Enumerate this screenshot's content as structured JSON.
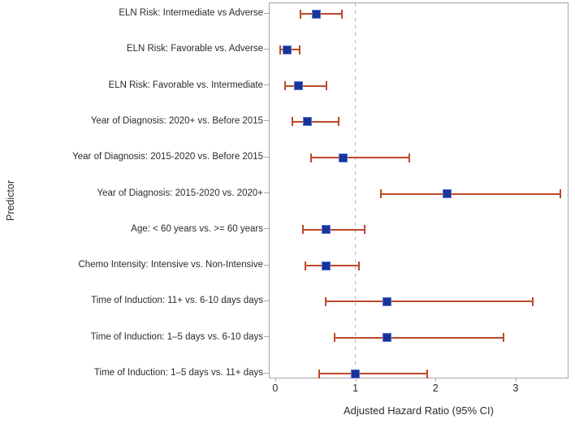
{
  "chart_data": {
    "type": "forest",
    "title": "",
    "xlabel": "Adjusted Hazard Ratio (95% CI)",
    "ylabel": "Predictor",
    "xlim": [
      -0.07,
      3.65
    ],
    "xticks": [
      "0",
      "1",
      "2",
      "3"
    ],
    "reference_line": 1,
    "grid": false,
    "legend": "none",
    "rows": [
      {
        "label": "ELN Risk: Intermediate vs Adverse",
        "hr": 0.51,
        "lo": 0.32,
        "hi": 0.83
      },
      {
        "label": "ELN Risk: Favorable vs. Adverse",
        "hr": 0.15,
        "lo": 0.06,
        "hi": 0.31
      },
      {
        "label": "ELN Risk: Favorable vs. Intermediate",
        "hr": 0.29,
        "lo": 0.12,
        "hi": 0.64
      },
      {
        "label": "Year of Diagnosis: 2020+ vs. Before 2015",
        "hr": 0.4,
        "lo": 0.21,
        "hi": 0.79
      },
      {
        "label": "Year of Diagnosis: 2015-2020 vs. Before 2015",
        "hr": 0.85,
        "lo": 0.45,
        "hi": 1.67
      },
      {
        "label": "Year of Diagnosis: 2015-2020 vs. 2020+",
        "hr": 2.14,
        "lo": 1.32,
        "hi": 3.56
      },
      {
        "label": "Age: < 60 years vs. >= 60 years",
        "hr": 0.63,
        "lo": 0.35,
        "hi": 1.12
      },
      {
        "label": "Chemo Intensity: Intensive vs. Non-Intensive",
        "hr": 0.63,
        "lo": 0.38,
        "hi": 1.05
      },
      {
        "label": "Time of Induction:  11+ vs. 6-10 days days",
        "hr": 1.39,
        "lo": 0.63,
        "hi": 3.21
      },
      {
        "label": "Time of Induction: 1–5 days vs. 6-10 days",
        "hr": 1.39,
        "lo": 0.74,
        "hi": 2.85
      },
      {
        "label": "Time of Induction: 1–5 days vs. 11+ days",
        "hr": 1.0,
        "lo": 0.55,
        "hi": 1.9
      }
    ],
    "colors": {
      "marker": "#17339c",
      "marker_border": "#5b76cd",
      "error_bar": "#c0482a",
      "reference_line": "#b5b5b5",
      "axis": "#a6a6a6",
      "text": "#2b2b2b"
    }
  }
}
